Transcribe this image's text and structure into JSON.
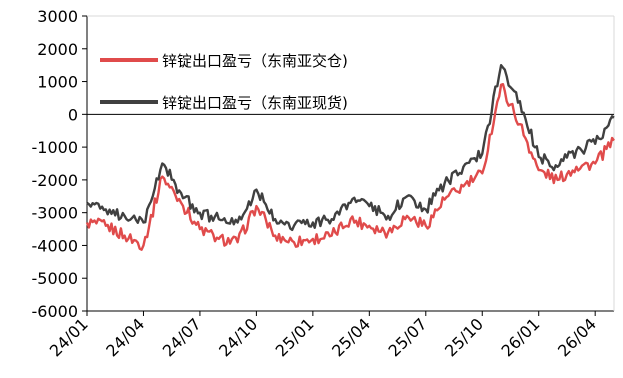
{
  "chart_data": {
    "type": "line",
    "title": "",
    "xlabel": "",
    "ylabel": "",
    "ylim": [
      -6000,
      3000
    ],
    "yticks": [
      3000,
      2000,
      1000,
      0,
      -1000,
      -2000,
      -3000,
      -4000,
      -5000,
      -6000
    ],
    "x_range": [
      "2024-01",
      "2026-05"
    ],
    "xticks": [
      "24/01",
      "24/04",
      "24/07",
      "24/10",
      "25/01",
      "25/04",
      "25/07",
      "25/10",
      "26/01",
      "26/04"
    ],
    "grid": false,
    "legend_position": "top-left",
    "x": [
      "2024-01",
      "2024-02",
      "2024-03",
      "2024-04",
      "2024-05",
      "2024-06",
      "2024-07",
      "2024-08",
      "2024-09",
      "2024-10",
      "2024-11",
      "2024-12",
      "2025-01",
      "2025-02",
      "2025-03",
      "2025-04",
      "2025-05",
      "2025-06",
      "2025-07",
      "2025-08",
      "2025-09",
      "2025-10",
      "2025-11",
      "2025-12",
      "2026-01",
      "2026-02",
      "2026-03",
      "2026-04",
      "2026-05"
    ],
    "series": [
      {
        "name": "锌锭出口盈亏（东南亚交仓)",
        "color": "#e04b4b",
        "values": [
          -3300,
          -3400,
          -3700,
          -4000,
          -1900,
          -2700,
          -3500,
          -3800,
          -3900,
          -2800,
          -3700,
          -3900,
          -3800,
          -3700,
          -3200,
          -3400,
          -3600,
          -3100,
          -3400,
          -2600,
          -2200,
          -1800,
          900,
          -300,
          -1700,
          -2000,
          -1600,
          -1500,
          -800
        ]
      },
      {
        "name": "锌锭出口盈亏（东南亚现货)",
        "color": "#404040",
        "values": [
          -2700,
          -2900,
          -3100,
          -3300,
          -1500,
          -2400,
          -3000,
          -3200,
          -3300,
          -2300,
          -3200,
          -3400,
          -3300,
          -3200,
          -2700,
          -2800,
          -3100,
          -2500,
          -2900,
          -2100,
          -1600,
          -1200,
          1500,
          400,
          -1300,
          -1600,
          -1100,
          -900,
          -100
        ]
      }
    ]
  }
}
